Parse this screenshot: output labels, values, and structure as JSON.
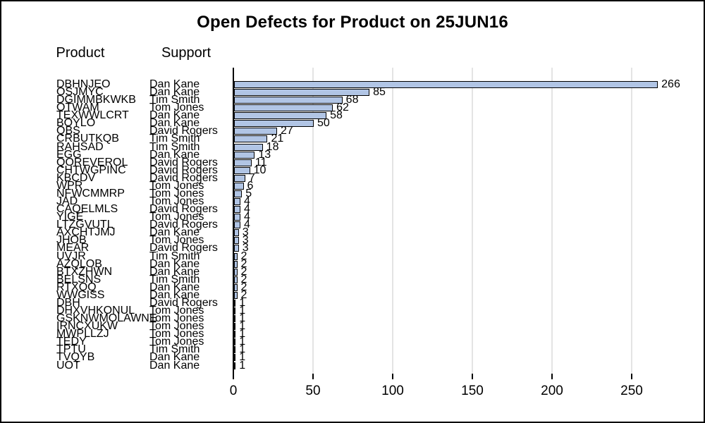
{
  "title": "Open Defects for Product on 25JUN16",
  "column_headers": {
    "product": "Product",
    "support": "Support"
  },
  "chart_data": {
    "type": "bar",
    "orientation": "horizontal",
    "title": "Open Defects for Product on 25JUN16",
    "xlabel": "",
    "ylabel": "",
    "xlim": [
      0,
      290
    ],
    "x_ticks": [
      0,
      50,
      100,
      150,
      200,
      250
    ],
    "grid": "vertical-gridlines-on",
    "legend": "none",
    "bar_color": "#B1C5E5",
    "bar_border_color": "#000000",
    "gridline_color": "#E4E4E4",
    "axis_color": "#000000",
    "categories_note": "each row shows Product code, Support owner, open defect count",
    "rows": [
      {
        "product": "DBHNJEO",
        "support": "Dan Kane",
        "value": 266
      },
      {
        "product": "OSJMYC",
        "support": "Dan Kane",
        "value": 85
      },
      {
        "product": "DGIMMBKWKB",
        "support": "Tim Smith",
        "value": 68
      },
      {
        "product": "OTWAM",
        "support": "Tom Jones",
        "value": 62
      },
      {
        "product": "TEXWWLCRT",
        "support": "Dan Kane",
        "value": 58
      },
      {
        "product": "BOYLO",
        "support": "Dan Kane",
        "value": 50
      },
      {
        "product": "QBS",
        "support": "David Rogers",
        "value": 27
      },
      {
        "product": "CRBUTKQB",
        "support": "Tim Smith",
        "value": 21
      },
      {
        "product": "RAHSAD",
        "support": "Tim Smith",
        "value": 18
      },
      {
        "product": "EGG",
        "support": "Dan Kane",
        "value": 13
      },
      {
        "product": "QOREVEROL",
        "support": "David Rogers",
        "value": 11
      },
      {
        "product": "CHTWGPINC",
        "support": "David Rogers",
        "value": 10
      },
      {
        "product": "KBCDV",
        "support": "David Rogers",
        "value": 7
      },
      {
        "product": "WPR",
        "support": "Tom Jones",
        "value": 6
      },
      {
        "product": "NFWCMMRP",
        "support": "Tom Jones",
        "value": 5
      },
      {
        "product": "JAD",
        "support": "Tom Jones",
        "value": 4
      },
      {
        "product": "CAQELMLS",
        "support": "David Rogers",
        "value": 4
      },
      {
        "product": "YIGE",
        "support": "Tom Jones",
        "value": 4
      },
      {
        "product": "LTZGVUTL",
        "support": "David Rogers",
        "value": 4
      },
      {
        "product": "AXCHTJMJ",
        "support": "Dan Kane",
        "value": 3
      },
      {
        "product": "JHOB",
        "support": "Tom Jones",
        "value": 3
      },
      {
        "product": "MEAR",
        "support": "David Rogers",
        "value": 3
      },
      {
        "product": "UVJR",
        "support": "Tim Smith",
        "value": 2
      },
      {
        "product": "AZQLOB",
        "support": "Dan Kane",
        "value": 2
      },
      {
        "product": "BTXZHWN",
        "support": "Dan Kane",
        "value": 2
      },
      {
        "product": "BELSNS",
        "support": "Tim Smith",
        "value": 2
      },
      {
        "product": "RTXQQ",
        "support": "Dan Kane",
        "value": 2
      },
      {
        "product": "WWGISS",
        "support": "Dan Kane",
        "value": 2
      },
      {
        "product": "DBH",
        "support": "David Rogers",
        "value": 1
      },
      {
        "product": "DHXVHKONUL",
        "support": "Tom Jones",
        "value": 1
      },
      {
        "product": "GSKNWMOLAWNE",
        "support": "Tom Jones",
        "value": 1
      },
      {
        "product": "IRNCXUKW",
        "support": "Tom Jones",
        "value": 1
      },
      {
        "product": "MWPLLZJ",
        "support": "Tom Jones",
        "value": 1
      },
      {
        "product": "TEDY",
        "support": "Tom Jones",
        "value": 1
      },
      {
        "product": "TPTU",
        "support": "Tim Smith",
        "value": 1
      },
      {
        "product": "TVQYB",
        "support": "Dan Kane",
        "value": 1
      },
      {
        "product": "UOT",
        "support": "Dan Kane",
        "value": 1
      }
    ]
  }
}
